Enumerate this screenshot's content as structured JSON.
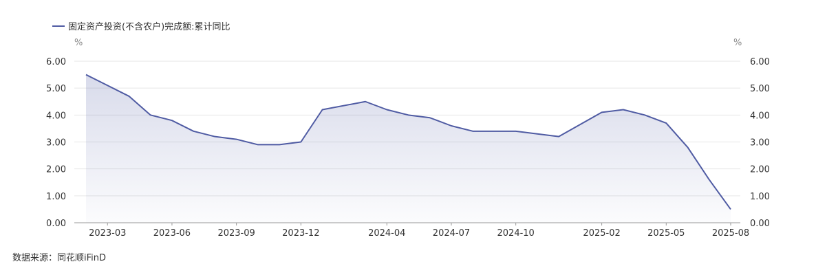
{
  "chart_data": {
    "type": "area",
    "legend": {
      "position": "top-left"
    },
    "series": [
      {
        "name": "固定资产投资(不含农户)完成额:累计同比",
        "color": "#4f5ba3",
        "x": [
          "2023-02",
          "2023-03",
          "2023-04",
          "2023-05",
          "2023-06",
          "2023-07",
          "2023-08",
          "2023-09",
          "2023-10",
          "2023-11",
          "2023-12",
          "2024-01",
          "2024-03",
          "2024-04",
          "2024-05",
          "2024-06",
          "2024-07",
          "2024-08",
          "2024-09",
          "2024-10",
          "2024-11",
          "2024-12",
          "2025-02",
          "2025-03",
          "2025-04",
          "2025-05",
          "2025-06",
          "2025-07",
          "2025-08"
        ],
        "values": [
          5.5,
          5.1,
          4.7,
          4.0,
          3.8,
          3.4,
          3.2,
          3.1,
          2.9,
          2.9,
          3.0,
          4.2,
          4.5,
          4.2,
          4.0,
          3.9,
          3.6,
          3.4,
          3.4,
          3.4,
          3.3,
          3.2,
          4.1,
          4.2,
          4.0,
          3.7,
          2.8,
          1.6,
          0.5
        ]
      }
    ],
    "x_tick_labels": [
      "2023-03",
      "2023-06",
      "2023-09",
      "2023-12",
      "2024-04",
      "2024-07",
      "2024-10",
      "2025-02",
      "2025-05",
      "2025-08"
    ],
    "y_ticks": [
      "0.00",
      "1.00",
      "2.00",
      "3.00",
      "4.00",
      "5.00",
      "6.00"
    ],
    "ylim": [
      0,
      6
    ],
    "y_unit_left": "%",
    "y_unit_right": "%",
    "grid": true,
    "fill": "gradient"
  },
  "source_text": "数据来源：同花顺iFinD"
}
